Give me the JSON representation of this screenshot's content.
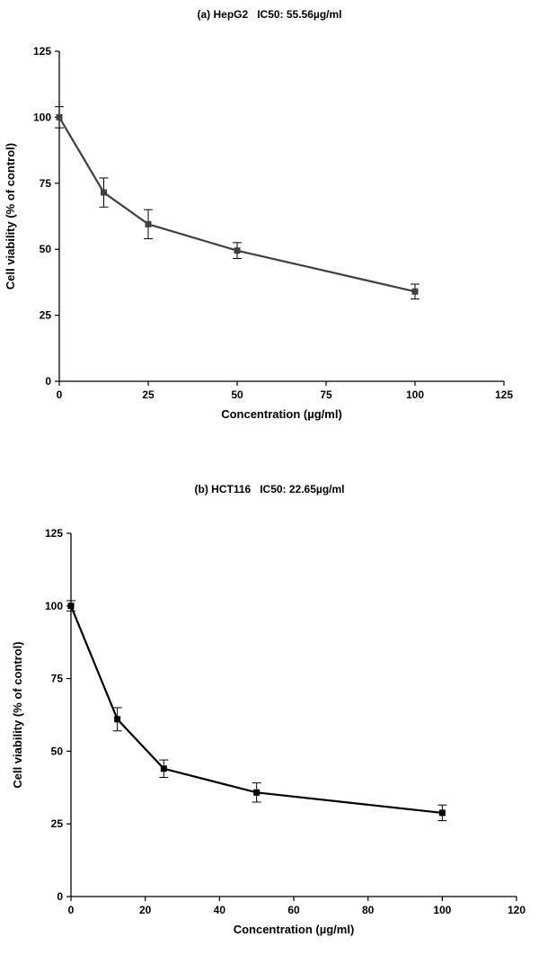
{
  "chart_data": [
    {
      "type": "line",
      "title": "(a) HepG2   IC50: 55.56µg/ml",
      "xlabel": "Concentration (µg/ml)",
      "ylabel": "Cell viability (% of control)",
      "xlim": [
        0,
        125
      ],
      "ylim": [
        0,
        125
      ],
      "xticks": [
        0,
        25,
        50,
        75,
        100,
        125
      ],
      "yticks": [
        0,
        25,
        50,
        75,
        100,
        125
      ],
      "line_color": "#404040",
      "grid": false,
      "series": [
        {
          "x": [
            0,
            12.5,
            25,
            50,
            100
          ],
          "values": [
            100,
            71.5,
            59.5,
            49.5,
            34
          ],
          "errors": [
            4,
            5.5,
            5.5,
            3,
            2.8
          ]
        }
      ]
    },
    {
      "type": "line",
      "title": "(b) HCT116   IC50: 22.65µg/ml",
      "xlabel": "Concentration (µg/ml)",
      "ylabel": "Cell viability (% of control)",
      "xlim": [
        0,
        120
      ],
      "ylim": [
        0,
        125
      ],
      "xticks": [
        0,
        20,
        40,
        60,
        80,
        100,
        120
      ],
      "yticks": [
        0,
        25,
        50,
        75,
        100,
        125
      ],
      "line_color": "#000000",
      "grid": false,
      "series": [
        {
          "x": [
            0,
            12.5,
            25,
            50,
            100
          ],
          "values": [
            100,
            61,
            44,
            35.8,
            28.8
          ],
          "errors": [
            1.8,
            4,
            3,
            3.3,
            2.7
          ]
        }
      ]
    }
  ]
}
